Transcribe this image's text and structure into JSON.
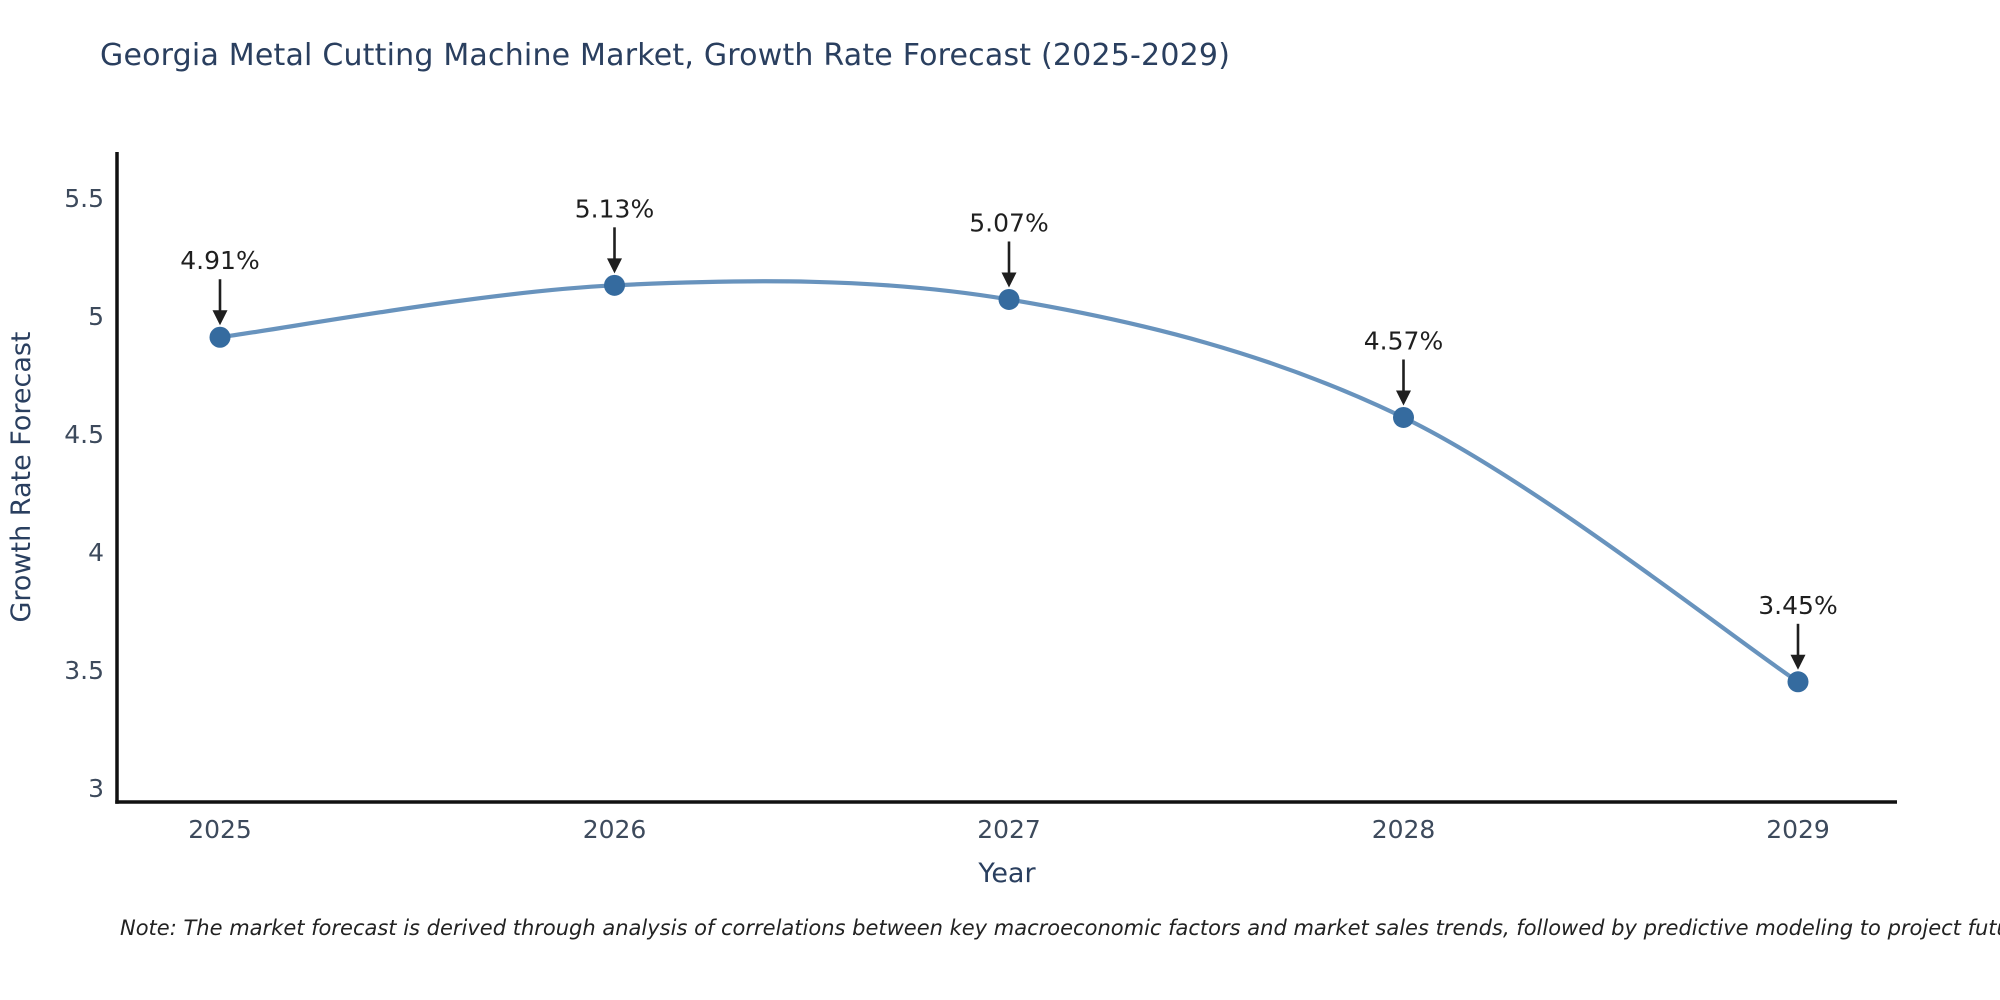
{
  "page": {
    "background": "#ffffff"
  },
  "header": {
    "title": "Georgia Metal Cutting Machine Market, Growth Rate Forecast (2025-2029)"
  },
  "footer": {
    "note": "Note: The market forecast is derived through analysis of correlations between key macroeconomic factors and market sales trends, followed by predictive modeling to project future sales"
  },
  "chart_data": {
    "type": "line",
    "line_shape": "spline",
    "title": "Georgia Metal Cutting Machine Market, Growth Rate Forecast (2025-2029)",
    "xlabel": "Year",
    "ylabel": "Growth Rate Forecast",
    "categories": [
      "2025",
      "2026",
      "2027",
      "2028",
      "2029"
    ],
    "values": [
      4.91,
      5.13,
      5.07,
      4.57,
      3.45
    ],
    "point_labels": [
      "4.91%",
      "5.13%",
      "5.07%",
      "4.57%",
      "3.45%"
    ],
    "yticks": [
      3,
      3.5,
      4,
      4.5,
      5,
      5.5
    ],
    "ylim": [
      3,
      5.7
    ],
    "grid": false,
    "legend": "none",
    "markers": true,
    "annotations_arrow": "down",
    "colors": {
      "line": "rgba(62,117,170,0.78)",
      "marker": "#356b9f",
      "axis_line": "#111111",
      "title_text": "#2a3f5f",
      "axis_title_text": "#2a3f5f",
      "tick_text": "#3d4a5c",
      "annotation_text": "#1f1f1f",
      "note_text": "#222222"
    }
  }
}
